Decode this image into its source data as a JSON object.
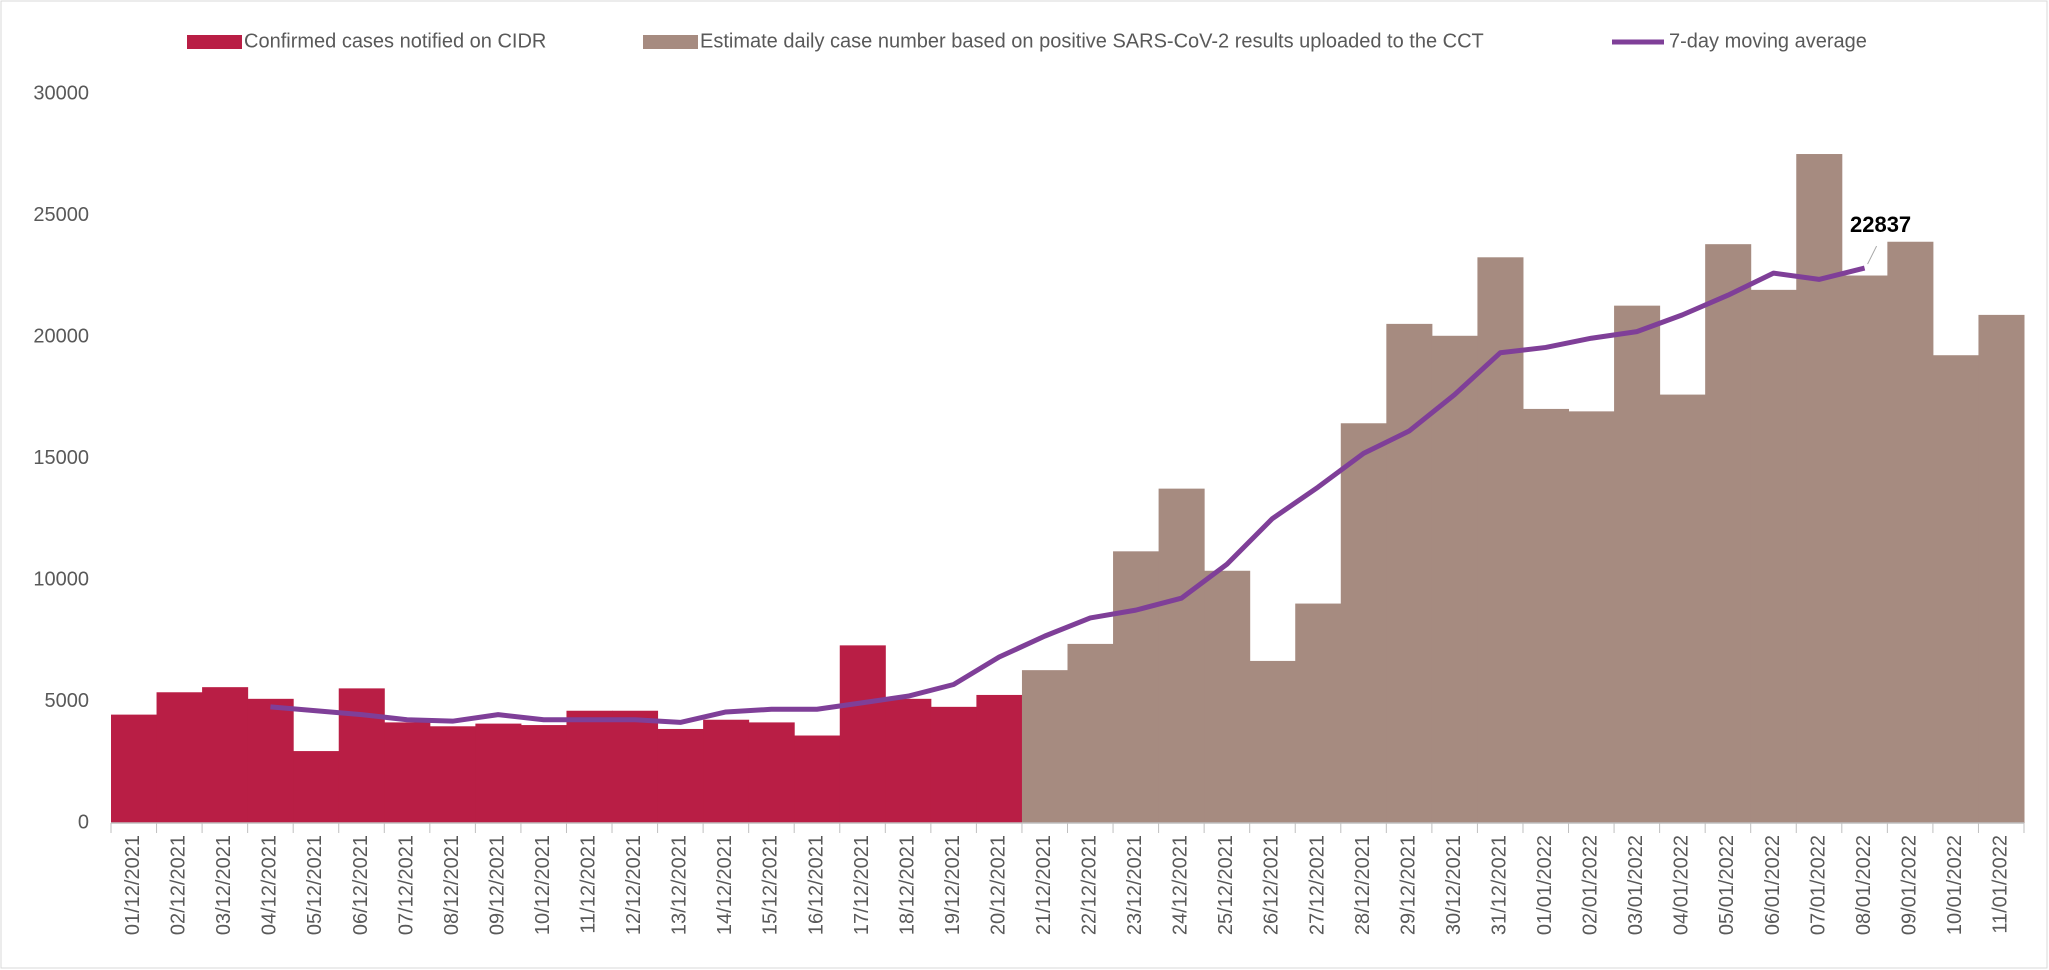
{
  "chart_data": {
    "type": "bar",
    "categories": [
      "01/12/2021",
      "02/12/2021",
      "03/12/2021",
      "04/12/2021",
      "05/12/2021",
      "06/12/2021",
      "07/12/2021",
      "08/12/2021",
      "09/12/2021",
      "10/12/2021",
      "11/12/2021",
      "12/12/2021",
      "13/12/2021",
      "14/12/2021",
      "15/12/2021",
      "16/12/2021",
      "17/12/2021",
      "18/12/2021",
      "19/12/2021",
      "20/12/2021",
      "21/12/2021",
      "22/12/2021",
      "23/12/2021",
      "24/12/2021",
      "25/12/2021",
      "26/12/2021",
      "27/12/2021",
      "28/12/2021",
      "29/12/2021",
      "30/12/2021",
      "31/12/2021",
      "01/01/2022",
      "02/01/2022",
      "03/01/2022",
      "04/01/2022",
      "05/01/2022",
      "06/01/2022",
      "07/01/2022",
      "08/01/2022",
      "09/01/2022",
      "10/01/2022",
      "11/01/2022"
    ],
    "series": [
      {
        "name": "Confirmed cases notified on CIDR",
        "type": "bar",
        "color": "#b91e45",
        "values": [
          4460,
          5380,
          5590,
          5110,
          2960,
          5540,
          4140,
          3980,
          4090,
          4030,
          4620,
          4620,
          3870,
          4250,
          4140,
          3600,
          7310,
          5110,
          4780,
          5270,
          null,
          null,
          null,
          null,
          null,
          null,
          null,
          null,
          null,
          null,
          null,
          null,
          null,
          null,
          null,
          null,
          null,
          null,
          null,
          null,
          null,
          null
        ]
      },
      {
        "name": "Estimate daily case number based on positive SARS-CoV-2 results uploaded to the CCT",
        "type": "bar",
        "color": "#a68b80",
        "values": [
          null,
          null,
          null,
          null,
          null,
          null,
          null,
          null,
          null,
          null,
          null,
          null,
          null,
          null,
          null,
          null,
          null,
          null,
          null,
          null,
          6290,
          7370,
          11180,
          13760,
          10380,
          6670,
          9030,
          16450,
          20540,
          20050,
          23280,
          17040,
          16940,
          21290,
          17630,
          23820,
          21940,
          27530,
          22530,
          23920,
          19250,
          20910
        ]
      },
      {
        "name": "7-day moving average",
        "type": "line",
        "color": "#7f3f98",
        "values": [
          null,
          null,
          null,
          4780,
          4620,
          4460,
          4250,
          4190,
          4460,
          4250,
          4250,
          4250,
          4140,
          4570,
          4680,
          4680,
          4950,
          5220,
          5700,
          6830,
          7690,
          8440,
          8760,
          9250,
          10650,
          12530,
          13820,
          15210,
          16130,
          17630,
          19350,
          19570,
          19950,
          20220,
          20910,
          21720,
          22630,
          22370,
          22837,
          null,
          null,
          null
        ],
        "value_labels": [
          null,
          null,
          null,
          null,
          null,
          null,
          null,
          null,
          null,
          null,
          null,
          null,
          null,
          null,
          null,
          null,
          null,
          null,
          null,
          null,
          null,
          null,
          null,
          null,
          null,
          null,
          null,
          null,
          null,
          null,
          null,
          null,
          null,
          null,
          null,
          null,
          null,
          null,
          "22837",
          null,
          null,
          null
        ]
      }
    ],
    "ylim": [
      0,
      30000
    ],
    "yticks": [
      0,
      5000,
      10000,
      15000,
      20000,
      25000,
      30000
    ],
    "grid": false
  }
}
